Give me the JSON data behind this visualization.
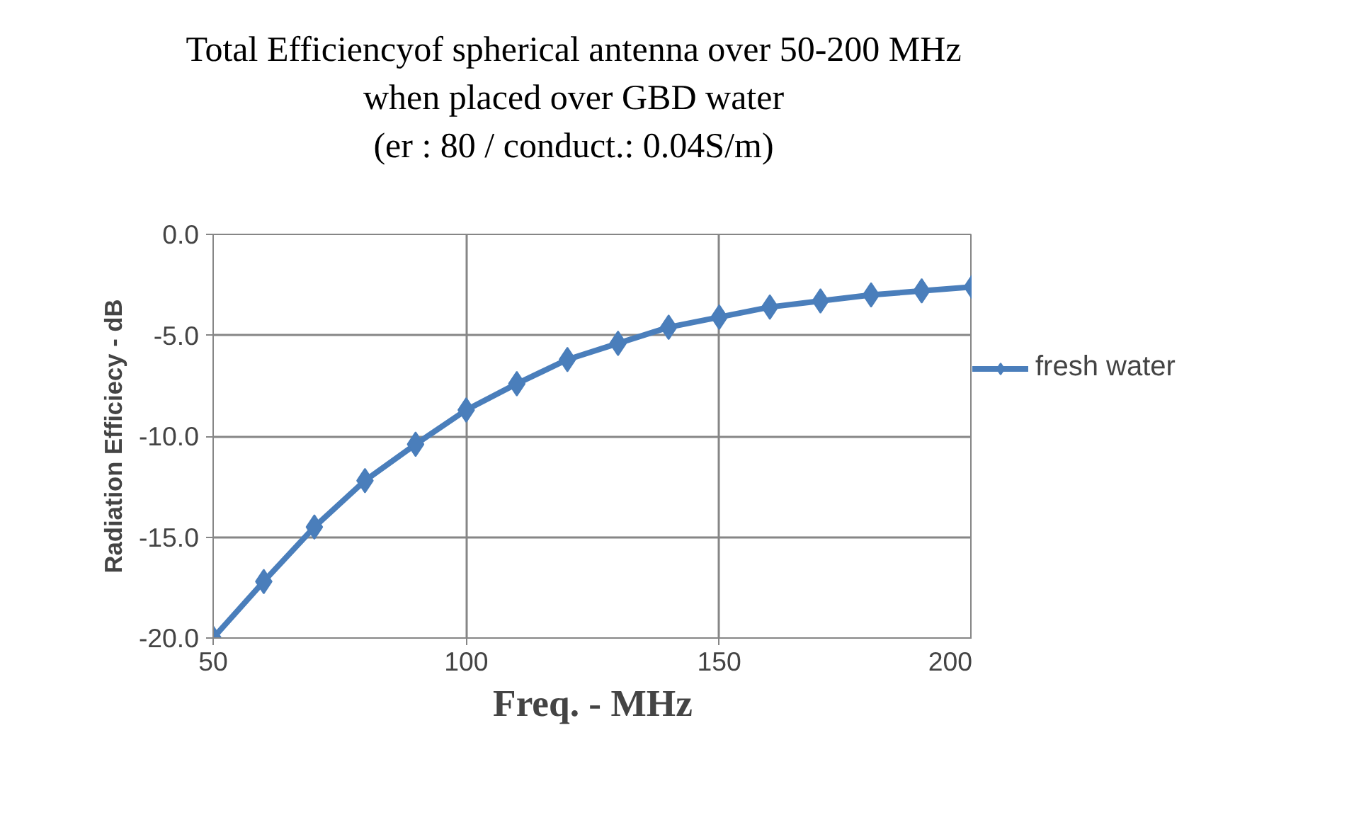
{
  "chart_data": {
    "type": "line",
    "title": "Total Efficiencyof spherical antenna over 50-200 MHz\nwhen placed over GBD water\n(er : 80 / conduct.: 0.04S/m)",
    "xlabel": "Freq. - MHz",
    "ylabel": "Radiation Efficiecy - dB",
    "x": [
      50,
      60,
      70,
      80,
      90,
      100,
      110,
      120,
      130,
      140,
      150,
      160,
      170,
      180,
      190,
      200
    ],
    "series": [
      {
        "name": "fresh water",
        "color": "#4a7ebb",
        "values": [
          -20.0,
          -17.2,
          -14.5,
          -12.2,
          -10.4,
          -8.7,
          -7.4,
          -6.2,
          -5.4,
          -4.6,
          -4.1,
          -3.6,
          -3.3,
          -3.0,
          -2.8,
          -2.6
        ]
      }
    ],
    "xlim": [
      50,
      200
    ],
    "xticks": [
      50,
      100,
      150,
      200
    ],
    "ylim": [
      -20,
      0
    ],
    "yticks": [
      {
        "value": -20,
        "label": "-20.0"
      },
      {
        "value": -15,
        "label": "-15.0"
      },
      {
        "value": -10,
        "label": "-10.0"
      },
      {
        "value": -5,
        "label": "-5.0"
      },
      {
        "value": 0,
        "label": "0.0"
      }
    ],
    "grid": true,
    "legend": "right",
    "marker": "diamond",
    "line_style": "solid"
  }
}
